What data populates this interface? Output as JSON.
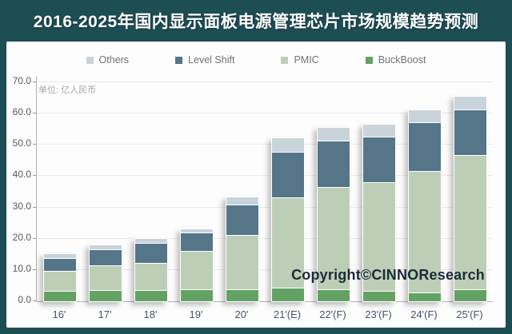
{
  "header": {
    "title": "2016-2025年国内显示面板电源管理芯片市场规模趋势预测"
  },
  "unit_label": "单位: 亿人民币",
  "watermark": "Copyright©CINNOResearch",
  "colors": {
    "frame_teal": "#1d4e54",
    "panel": "#fdfdfd",
    "others": "#c9d3da",
    "level_shift": "#557589",
    "pmic": "#bccfb6",
    "buckboost": "#64a264"
  },
  "legend": {
    "position": "top",
    "items": [
      {
        "label": "Others",
        "color": "#c9d3da"
      },
      {
        "label": "Level Shift",
        "color": "#557589"
      },
      {
        "label": "PMIC",
        "color": "#bccfb6"
      },
      {
        "label": "BuckBoost",
        "color": "#64a264"
      }
    ]
  },
  "chart_data": {
    "type": "bar",
    "stacked": true,
    "title": "2016-2025年国内显示面板电源管理芯片市场规模趋势预测",
    "ylabel": "亿人民币",
    "ylim": [
      0,
      70
    ],
    "yticks": [
      "0.0",
      "10.0",
      "20.0",
      "30.0",
      "40.0",
      "50.0",
      "60.0",
      "70.0"
    ],
    "grid": true,
    "legend_position": "top",
    "categories": [
      "16'",
      "17'",
      "18'",
      "19'",
      "20'",
      "21'(E)",
      "22'(F)",
      "23'(F)",
      "24'(F)",
      "25'(F)"
    ],
    "series": [
      {
        "name": "BuckBoost",
        "color": "#64a264",
        "values": [
          3.0,
          3.3,
          3.3,
          3.6,
          3.6,
          4.0,
          3.5,
          3.0,
          2.5,
          3.5
        ]
      },
      {
        "name": "PMIC",
        "color": "#bccfb6",
        "values": [
          6.5,
          7.9,
          8.8,
          12.3,
          17.4,
          29.0,
          32.8,
          34.8,
          39.0,
          43.0
        ]
      },
      {
        "name": "Level Shift",
        "color": "#557589",
        "values": [
          4.0,
          5.1,
          6.4,
          5.7,
          9.6,
          14.5,
          14.7,
          14.5,
          15.5,
          14.5
        ]
      },
      {
        "name": "Others",
        "color": "#c9d3da",
        "values": [
          1.5,
          1.5,
          1.5,
          1.5,
          2.7,
          4.5,
          4.5,
          4.2,
          4.0,
          4.5
        ]
      }
    ],
    "totals": [
      15.0,
      17.8,
      20.0,
      23.1,
      33.3,
      52.0,
      55.5,
      56.5,
      61.0,
      65.5
    ]
  }
}
